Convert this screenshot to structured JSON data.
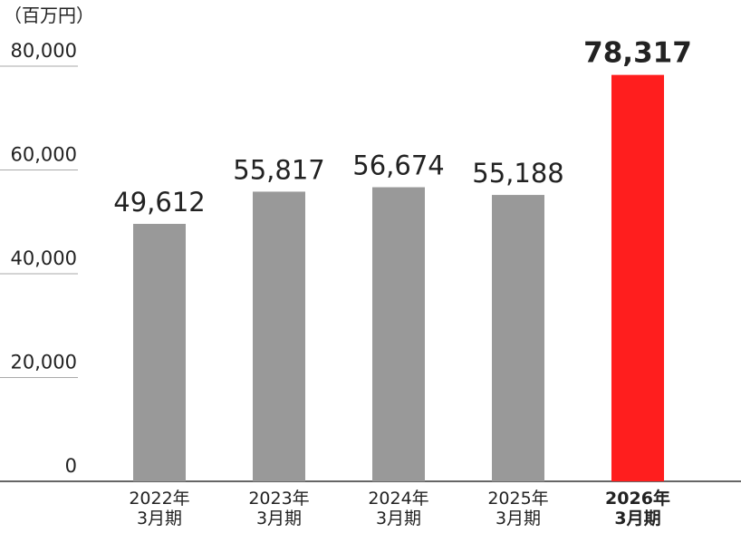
{
  "chart_data": {
    "type": "bar",
    "y_label": "（百万円）",
    "categories": [
      "2022年\n3月期",
      "2023年\n3月期",
      "2024年\n3月期",
      "2025年\n3月期",
      "2026年\n3月期"
    ],
    "values": [
      49612,
      55817,
      56674,
      55188,
      78317
    ],
    "value_labels": [
      "49,612",
      "55,817",
      "56,674",
      "55,188",
      "78,317"
    ],
    "colors": [
      "#999999",
      "#999999",
      "#999999",
      "#999999",
      "#ff1e1e"
    ],
    "emphasis": [
      false,
      false,
      false,
      false,
      true
    ],
    "ylim": [
      0,
      80000
    ],
    "yticks": [
      0,
      {
        "value": 20000,
        "label": "20,000"
      },
      {
        "value": 40000,
        "label": "40,000"
      },
      {
        "value": 60000,
        "label": "60,000"
      },
      {
        "value": 80000,
        "label": "80,000"
      }
    ]
  }
}
